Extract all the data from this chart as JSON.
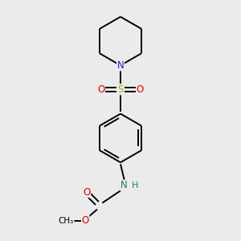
{
  "background_color": "#ebebeb",
  "bond_color": "#000000",
  "atom_colors": {
    "N_pip": "#2222cc",
    "N_carbamate": "#227777",
    "S": "#bbaa00",
    "O": "#dd0000",
    "H": "#227777"
  },
  "figsize": [
    3.0,
    3.0
  ],
  "dpi": 100,
  "xlim": [
    -1.8,
    1.8
  ],
  "ylim": [
    -3.8,
    3.2
  ]
}
